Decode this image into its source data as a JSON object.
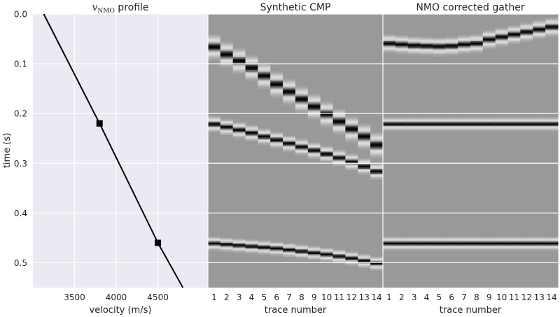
{
  "theme": {
    "panel_bg": "#eaeaf2",
    "grid": "#ffffff",
    "line": "#000000",
    "text": "#262626",
    "gray_bg": "#999999"
  },
  "chart_data": [
    {
      "type": "line",
      "title_sym": "v",
      "title_sub": "NMO",
      "title_rest": " profile",
      "xlabel": "velocity (m/s)",
      "ylabel": "time (s)",
      "xlim": [
        3000,
        5100
      ],
      "ylim": [
        0.55,
        0.0
      ],
      "xticks": [
        3500,
        4000,
        4500
      ],
      "yticks": [
        0.0,
        0.1,
        0.2,
        0.3,
        0.4,
        0.5
      ],
      "x": [
        3130,
        3800,
        4500,
        4800
      ],
      "y": [
        0.0,
        0.22,
        0.46,
        0.55
      ],
      "markers": {
        "x": [
          3800,
          4500
        ],
        "y": [
          0.22,
          0.46
        ]
      },
      "grid": true
    },
    {
      "type": "heatmap",
      "title": "Synthetic CMP",
      "xlabel": "trace number",
      "xticks": [
        1,
        2,
        3,
        4,
        5,
        6,
        7,
        8,
        9,
        10,
        11,
        12,
        13,
        14
      ],
      "ylim": [
        0.55,
        0.0
      ],
      "colormap": "gray",
      "events": [
        {
          "t0": [
            0.065,
            0.08,
            0.093,
            0.107,
            0.123,
            0.14,
            0.155,
            0.17,
            0.185,
            0.2,
            0.215,
            0.23,
            0.245,
            0.262
          ],
          "width": 0.011
        },
        {
          "t0": [
            0.22,
            0.226,
            0.232,
            0.238,
            0.245,
            0.252,
            0.259,
            0.266,
            0.273,
            0.28,
            0.288,
            0.296,
            0.305,
            0.315
          ],
          "width": 0.007
        },
        {
          "t0": [
            0.46,
            0.462,
            0.464,
            0.466,
            0.468,
            0.47,
            0.473,
            0.476,
            0.479,
            0.482,
            0.486,
            0.49,
            0.495,
            0.5
          ],
          "width": 0.006
        }
      ]
    },
    {
      "type": "heatmap",
      "title": "NMO corrected gather",
      "xlabel": "trace number",
      "xticks": [
        1,
        2,
        3,
        4,
        5,
        6,
        7,
        8,
        9,
        10,
        11,
        12,
        13,
        14
      ],
      "ylim": [
        0.55,
        0.0
      ],
      "colormap": "gray",
      "events": [
        {
          "t0": [
            0.058,
            0.06,
            0.062,
            0.063,
            0.064,
            0.063,
            0.06,
            0.058,
            0.05,
            0.045,
            0.04,
            0.035,
            0.03,
            0.025
          ],
          "width": 0.008
        },
        {
          "t0": [
            0.22,
            0.22,
            0.22,
            0.22,
            0.22,
            0.22,
            0.22,
            0.22,
            0.22,
            0.22,
            0.22,
            0.22,
            0.22,
            0.22
          ],
          "width": 0.006
        },
        {
          "t0": [
            0.46,
            0.46,
            0.46,
            0.46,
            0.46,
            0.46,
            0.46,
            0.46,
            0.46,
            0.46,
            0.46,
            0.46,
            0.46,
            0.46
          ],
          "width": 0.006
        }
      ]
    }
  ]
}
